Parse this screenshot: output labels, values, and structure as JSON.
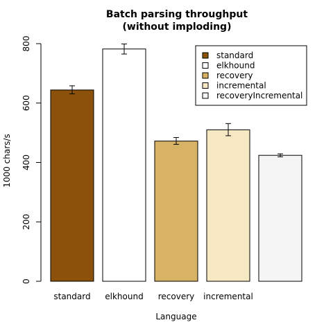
{
  "chart_data": {
    "type": "bar",
    "title": "Batch parsing throughput\n(without imploding)",
    "title_lines": [
      "Batch parsing throughput",
      "(without imploding)"
    ],
    "xlabel": "Language",
    "ylabel": "1000 chars/s",
    "categories": [
      "standard",
      "elkhound",
      "recovery",
      "incremental",
      "recoveryIncremental"
    ],
    "category_tick_labels": [
      "standard",
      "elkhound",
      "recovery",
      "incremental",
      ""
    ],
    "values": [
      644,
      782,
      472,
      510,
      424
    ],
    "error_bars": [
      {
        "low": 631,
        "high": 658
      },
      {
        "low": 765,
        "high": 799
      },
      {
        "low": 461,
        "high": 484
      },
      {
        "low": 490,
        "high": 531
      },
      {
        "low": 419,
        "high": 429
      }
    ],
    "colors": [
      "#8c520c",
      "#ffffff",
      "#d8b265",
      "#f6e8c3",
      "#f5f5f5"
    ],
    "ylim": [
      0,
      800
    ],
    "yticks": [
      0,
      200,
      400,
      600,
      800
    ],
    "grid": false,
    "legend": {
      "placement": "top-right",
      "entries": [
        "standard",
        "elkhound",
        "recovery",
        "incremental",
        "recoveryIncremental"
      ]
    }
  }
}
